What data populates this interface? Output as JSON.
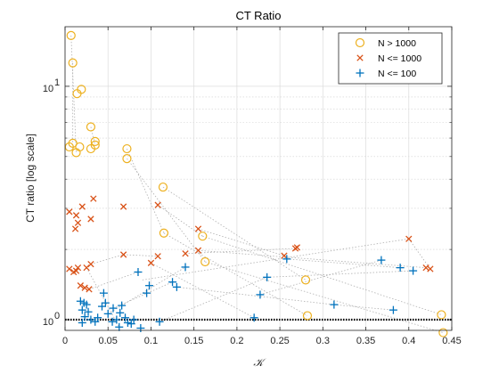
{
  "chart_data": {
    "type": "scatter",
    "title": "CT Ratio",
    "xlabel": "𝒦",
    "ylabel": "CT ratio [log scale]",
    "xlim": [
      0,
      0.45
    ],
    "ylim": [
      0.9,
      18
    ],
    "yscale": "log",
    "grid": true,
    "legend_position": "top-right",
    "x_ticks": [
      {
        "value": 0,
        "label": "0"
      },
      {
        "value": 0.05,
        "label": "0.05"
      },
      {
        "value": 0.1,
        "label": "0.1"
      },
      {
        "value": 0.15,
        "label": "0.15"
      },
      {
        "value": 0.2,
        "label": "0.2"
      },
      {
        "value": 0.25,
        "label": "0.25"
      },
      {
        "value": 0.3,
        "label": "0.3"
      },
      {
        "value": 0.35,
        "label": "0.35"
      },
      {
        "value": 0.4,
        "label": "0.4"
      },
      {
        "value": 0.45,
        "label": "0.45"
      }
    ],
    "y_ticks": [
      {
        "value": 1,
        "base": "10",
        "exp": "0"
      },
      {
        "value": 10,
        "base": "10",
        "exp": "1"
      }
    ],
    "reference_line": {
      "y": 1,
      "style": "dotted",
      "color": "#000000"
    },
    "colors": {
      "large": "#EDB120",
      "medium": "#D95319",
      "small": "#0072BD",
      "connector": "#b0b0b0"
    },
    "series": [
      {
        "name": "N > 1000",
        "marker": "circle",
        "points": [
          [
            0.007,
            16.5
          ],
          [
            0.009,
            12.6
          ],
          [
            0.014,
            9.3
          ],
          [
            0.019,
            9.7
          ],
          [
            0.03,
            6.7
          ],
          [
            0.005,
            5.5
          ],
          [
            0.009,
            5.7
          ],
          [
            0.013,
            5.2
          ],
          [
            0.017,
            5.5
          ],
          [
            0.03,
            5.4
          ],
          [
            0.035,
            5.8
          ],
          [
            0.035,
            5.6
          ],
          [
            0.072,
            5.4
          ],
          [
            0.072,
            4.9
          ],
          [
            0.114,
            3.7
          ],
          [
            0.115,
            2.35
          ],
          [
            0.16,
            2.28
          ],
          [
            0.163,
            1.77
          ],
          [
            0.28,
            1.48
          ],
          [
            0.282,
            1.04
          ],
          [
            0.438,
            1.05
          ],
          [
            0.44,
            0.88
          ]
        ]
      },
      {
        "name": "N <= 1000",
        "marker": "x",
        "points": [
          [
            0.005,
            2.9
          ],
          [
            0.012,
            2.45
          ],
          [
            0.013,
            2.8
          ],
          [
            0.015,
            2.6
          ],
          [
            0.02,
            3.05
          ],
          [
            0.03,
            2.7
          ],
          [
            0.033,
            3.3
          ],
          [
            0.068,
            3.05
          ],
          [
            0.108,
            3.1
          ],
          [
            0.005,
            1.65
          ],
          [
            0.01,
            1.6
          ],
          [
            0.013,
            1.62
          ],
          [
            0.015,
            1.67
          ],
          [
            0.018,
            1.4
          ],
          [
            0.023,
            1.37
          ],
          [
            0.025,
            1.67
          ],
          [
            0.028,
            1.35
          ],
          [
            0.03,
            1.73
          ],
          [
            0.068,
            1.9
          ],
          [
            0.1,
            1.75
          ],
          [
            0.108,
            1.87
          ],
          [
            0.14,
            1.92
          ],
          [
            0.155,
            2.45
          ],
          [
            0.155,
            1.98
          ],
          [
            0.255,
            1.88
          ],
          [
            0.268,
            2.02
          ],
          [
            0.27,
            2.04
          ],
          [
            0.4,
            2.22
          ],
          [
            0.42,
            1.67
          ],
          [
            0.425,
            1.65
          ]
        ]
      },
      {
        "name": "N <= 100",
        "marker": "plus",
        "points": [
          [
            0.018,
            1.2
          ],
          [
            0.022,
            1.18
          ],
          [
            0.025,
            1.16
          ],
          [
            0.02,
            1.1
          ],
          [
            0.027,
            1.08
          ],
          [
            0.03,
            1.0
          ],
          [
            0.023,
            1.03
          ],
          [
            0.02,
            0.97
          ],
          [
            0.035,
            0.98
          ],
          [
            0.038,
            1.02
          ],
          [
            0.043,
            1.14
          ],
          [
            0.045,
            1.3
          ],
          [
            0.047,
            1.18
          ],
          [
            0.05,
            1.06
          ],
          [
            0.055,
            0.98
          ],
          [
            0.056,
            1.12
          ],
          [
            0.06,
            1.0
          ],
          [
            0.063,
            0.93
          ],
          [
            0.064,
            1.07
          ],
          [
            0.066,
            1.15
          ],
          [
            0.07,
            1.02
          ],
          [
            0.073,
            0.97
          ],
          [
            0.077,
            0.96
          ],
          [
            0.08,
            1.0
          ],
          [
            0.085,
            1.6
          ],
          [
            0.088,
            0.92
          ],
          [
            0.095,
            1.3
          ],
          [
            0.098,
            1.4
          ],
          [
            0.11,
            0.98
          ],
          [
            0.125,
            1.45
          ],
          [
            0.13,
            1.38
          ],
          [
            0.14,
            1.68
          ],
          [
            0.22,
            1.02
          ],
          [
            0.227,
            1.28
          ],
          [
            0.235,
            1.52
          ],
          [
            0.258,
            1.82
          ],
          [
            0.313,
            1.16
          ],
          [
            0.368,
            1.8
          ],
          [
            0.382,
            1.1
          ],
          [
            0.39,
            1.67
          ],
          [
            0.405,
            1.62
          ]
        ]
      }
    ],
    "connectors": [
      [
        [
          0.007,
          16.5
        ],
        [
          0.013,
          5.2
        ]
      ],
      [
        [
          0.009,
          12.6
        ],
        [
          0.009,
          5.7
        ]
      ],
      [
        [
          0.03,
          6.7
        ],
        [
          0.035,
          5.6
        ]
      ],
      [
        [
          0.072,
          5.4
        ],
        [
          0.115,
          2.35
        ]
      ],
      [
        [
          0.072,
          4.9
        ],
        [
          0.163,
          1.77
        ]
      ],
      [
        [
          0.114,
          3.7
        ],
        [
          0.28,
          1.48
        ]
      ],
      [
        [
          0.115,
          2.35
        ],
        [
          0.282,
          1.04
        ]
      ],
      [
        [
          0.16,
          2.28
        ],
        [
          0.438,
          1.05
        ]
      ],
      [
        [
          0.163,
          1.77
        ],
        [
          0.44,
          0.88
        ]
      ],
      [
        [
          0.108,
          3.1
        ],
        [
          0.16,
          2.28
        ]
      ],
      [
        [
          0.155,
          2.45
        ],
        [
          0.255,
          1.88
        ]
      ],
      [
        [
          0.155,
          1.98
        ],
        [
          0.42,
          1.67
        ]
      ],
      [
        [
          0.14,
          1.92
        ],
        [
          0.268,
          2.02
        ]
      ],
      [
        [
          0.268,
          2.02
        ],
        [
          0.27,
          2.04
        ]
      ],
      [
        [
          0.03,
          1.73
        ],
        [
          0.068,
          1.9
        ]
      ],
      [
        [
          0.068,
          1.9
        ],
        [
          0.108,
          1.87
        ]
      ],
      [
        [
          0.025,
          1.67
        ],
        [
          0.063,
          0.93
        ]
      ],
      [
        [
          0.028,
          1.35
        ],
        [
          0.085,
          1.6
        ]
      ],
      [
        [
          0.05,
          1.06
        ],
        [
          0.14,
          1.68
        ]
      ],
      [
        [
          0.056,
          1.12
        ],
        [
          0.125,
          1.45
        ]
      ],
      [
        [
          0.1,
          1.75
        ],
        [
          0.22,
          1.02
        ]
      ],
      [
        [
          0.11,
          0.98
        ],
        [
          0.235,
          1.52
        ]
      ],
      [
        [
          0.13,
          1.38
        ],
        [
          0.313,
          1.16
        ]
      ],
      [
        [
          0.227,
          1.28
        ],
        [
          0.368,
          1.8
        ]
      ],
      [
        [
          0.258,
          1.82
        ],
        [
          0.39,
          1.67
        ]
      ],
      [
        [
          0.235,
          1.52
        ],
        [
          0.405,
          1.62
        ]
      ],
      [
        [
          0.313,
          1.16
        ],
        [
          0.382,
          1.1
        ]
      ],
      [
        [
          0.4,
          2.22
        ],
        [
          0.425,
          1.65
        ]
      ],
      [
        [
          0.09,
          1.48
        ],
        [
          0.4,
          2.22
        ]
      ]
    ]
  }
}
